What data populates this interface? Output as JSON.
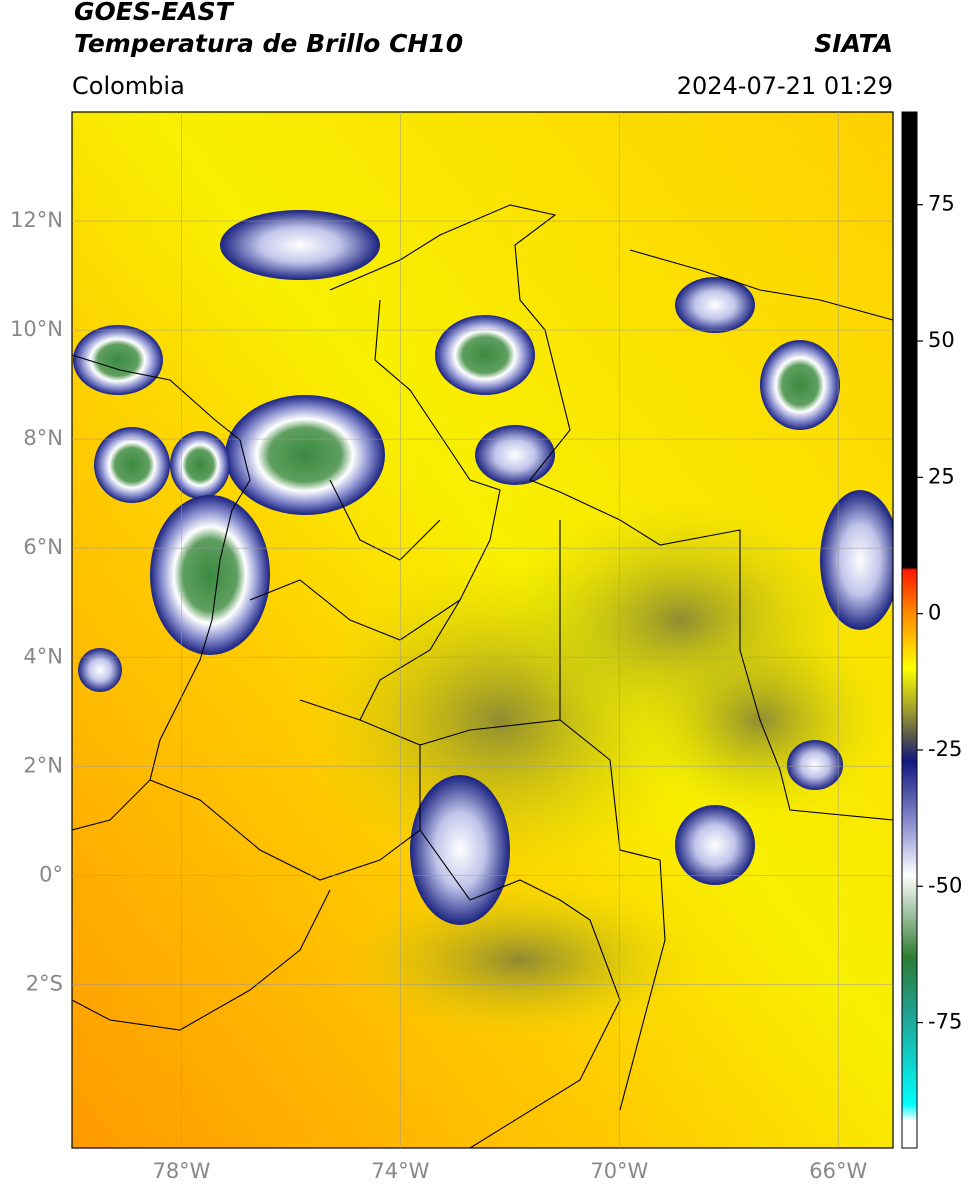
{
  "header": {
    "title": "GOES-EAST",
    "subtitle": "Temperatura de Brillo CH10",
    "region": "Colombia",
    "source": "SIATA",
    "datetime": "2024-07-21 01:29"
  },
  "map": {
    "lonlim": [
      -80,
      -65
    ],
    "latlim": [
      -5,
      14
    ],
    "xticks": [
      {
        "value": -78,
        "label": "78°W"
      },
      {
        "value": -74,
        "label": "74°W"
      },
      {
        "value": -70,
        "label": "70°W"
      },
      {
        "value": -66,
        "label": "66°W"
      }
    ],
    "yticks": [
      {
        "value": 12,
        "label": "12°N"
      },
      {
        "value": 10,
        "label": "10°N"
      },
      {
        "value": 8,
        "label": "8°N"
      },
      {
        "value": 6,
        "label": "6°N"
      },
      {
        "value": 4,
        "label": "4°N"
      },
      {
        "value": 2,
        "label": "2°N"
      },
      {
        "value": 0,
        "label": "0°"
      },
      {
        "value": -2,
        "label": "2°S"
      }
    ]
  },
  "colorbar": {
    "lim": [
      -98,
      92
    ],
    "ticks": [
      75,
      50,
      25,
      0,
      -25,
      -50,
      -75
    ],
    "stops": [
      {
        "value": 92,
        "color": "#000000"
      },
      {
        "value": 8.5,
        "color": "#000000"
      },
      {
        "value": 8,
        "color": "#ff1a00"
      },
      {
        "value": 0,
        "color": "#ff8c00"
      },
      {
        "value": -10,
        "color": "#ffff00"
      },
      {
        "value": -18,
        "color": "#9a9a30"
      },
      {
        "value": -23,
        "color": "#505050"
      },
      {
        "value": -27,
        "color": "#101880"
      },
      {
        "value": -40,
        "color": "#9ca0d8"
      },
      {
        "value": -48,
        "color": "#ffffff"
      },
      {
        "value": -63,
        "color": "#2e7d32"
      },
      {
        "value": -73,
        "color": "#20a090"
      },
      {
        "value": -90,
        "color": "#00ffff"
      },
      {
        "value": -93,
        "color": "#ffffff"
      },
      {
        "value": -98,
        "color": "#ffffff"
      }
    ]
  }
}
